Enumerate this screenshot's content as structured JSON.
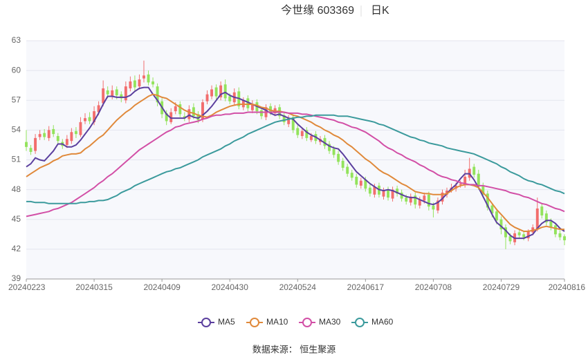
{
  "chart_data": {
    "type": "candlestick",
    "title": "今世缘 603369",
    "subtitle": "日K",
    "source": "数据来源： 恒生聚源",
    "categories": [
      "20240223",
      null,
      null,
      null,
      null,
      null,
      null,
      null,
      null,
      null,
      null,
      null,
      null,
      null,
      null,
      "20240315",
      null,
      null,
      null,
      null,
      null,
      null,
      null,
      null,
      null,
      null,
      null,
      null,
      null,
      null,
      "20240409",
      null,
      null,
      null,
      null,
      null,
      null,
      null,
      null,
      null,
      null,
      null,
      null,
      null,
      null,
      "20240430",
      null,
      null,
      null,
      null,
      null,
      null,
      null,
      null,
      null,
      null,
      null,
      null,
      null,
      null,
      "20240524",
      null,
      null,
      null,
      null,
      null,
      null,
      null,
      null,
      null,
      null,
      null,
      null,
      null,
      null,
      "20240617",
      null,
      null,
      null,
      null,
      null,
      null,
      null,
      null,
      null,
      null,
      null,
      null,
      null,
      null,
      "20240708",
      null,
      null,
      null,
      null,
      null,
      null,
      null,
      null,
      null,
      null,
      null,
      null,
      null,
      null,
      "20240729",
      null,
      null,
      null,
      null,
      null,
      null,
      null,
      null,
      null,
      null,
      null,
      null,
      null,
      "20240816"
    ],
    "open": [
      52.8,
      52.2,
      51.9,
      53.3,
      53.7,
      53.2,
      54.1,
      53.4,
      52.8,
      52.5,
      52.9,
      53.9,
      53.5,
      54.9,
      55.3,
      54.8,
      55.8,
      56.7,
      58.0,
      57.4,
      58.1,
      57.6,
      57.0,
      58.2,
      59.0,
      58.4,
      59.2,
      59.6,
      58.9,
      58.4,
      56.9,
      55.7,
      54.8,
      55.9,
      56.6,
      55.4,
      55.1,
      56.3,
      55.6,
      55.1,
      56.9,
      57.4,
      58.3,
      57.3,
      58.6,
      57.4,
      56.8,
      57.9,
      56.3,
      57.2,
      56.0,
      56.8,
      56.0,
      55.3,
      56.4,
      55.7,
      56.3,
      55.5,
      54.6,
      55.3,
      54.2,
      53.4,
      54.0,
      53.0,
      53.6,
      52.8,
      53.2,
      52.6,
      52.1,
      51.6,
      50.9,
      50.3,
      49.7,
      49.3,
      48.4,
      49.0,
      48.2,
      47.5,
      48.4,
      47.3,
      48.0,
      47.1,
      48.1,
      47.7,
      47.2,
      46.7,
      47.4,
      46.4,
      46.9,
      47.5,
      46.4,
      45.9,
      46.8,
      47.5,
      48.0,
      48.1,
      48.5,
      48.5,
      49.2,
      50.3,
      49.6,
      48.4,
      47.6,
      46.4,
      45.8,
      45.0,
      44.2,
      43.3,
      42.7,
      43.7,
      43.5,
      43.1,
      43.7,
      44.0,
      46.3,
      45.6,
      44.8,
      44.4,
      43.6,
      43.3
    ],
    "close": [
      52.3,
      51.8,
      53.2,
      53.6,
      53.3,
      54.0,
      53.6,
      52.9,
      52.4,
      53.1,
      53.8,
      53.6,
      54.8,
      55.2,
      54.9,
      55.9,
      56.5,
      58.2,
      57.6,
      58.0,
      57.5,
      57.2,
      58.4,
      58.9,
      58.3,
      59.1,
      59.5,
      58.8,
      58.6,
      56.8,
      55.6,
      54.9,
      55.8,
      56.4,
      55.6,
      55.2,
      56.1,
      55.4,
      55.0,
      56.8,
      57.6,
      58.1,
      57.4,
      58.5,
      57.2,
      56.9,
      57.8,
      56.4,
      57.0,
      56.2,
      56.6,
      55.9,
      55.4,
      56.3,
      55.8,
      56.2,
      55.4,
      54.8,
      55.2,
      54.0,
      53.5,
      53.9,
      53.2,
      53.4,
      52.9,
      53.1,
      52.4,
      51.9,
      51.5,
      50.8,
      50.2,
      49.6,
      49.2,
      48.5,
      48.9,
      48.1,
      47.6,
      48.3,
      47.5,
      47.9,
      47.2,
      48.0,
      47.6,
      47.1,
      46.8,
      47.3,
      46.5,
      47.0,
      47.4,
      46.3,
      46.0,
      46.9,
      47.7,
      47.9,
      48.2,
      48.4,
      48.6,
      49.3,
      50.1,
      49.5,
      48.3,
      47.5,
      46.2,
      45.6,
      44.9,
      44.0,
      43.2,
      42.8,
      43.6,
      43.4,
      43.2,
      43.8,
      44.2,
      46.1,
      45.4,
      44.7,
      44.2,
      43.5,
      43.2,
      42.9
    ],
    "low": [
      51.9,
      51.5,
      51.6,
      53.0,
      53.0,
      52.9,
      53.3,
      52.6,
      52.1,
      52.2,
      52.6,
      53.2,
      53.3,
      54.6,
      54.6,
      54.5,
      55.5,
      56.4,
      57.2,
      57.1,
      57.1,
      56.8,
      56.7,
      57.9,
      57.9,
      58.1,
      58.8,
      58.5,
      58.3,
      56.4,
      55.2,
      54.5,
      54.6,
      55.6,
      55.3,
      54.9,
      54.8,
      55.1,
      54.7,
      54.8,
      56.6,
      57.1,
      57.1,
      57.0,
      56.9,
      56.6,
      56.5,
      56.1,
      56.0,
      55.9,
      55.7,
      55.6,
      55.1,
      55.0,
      55.5,
      55.4,
      55.1,
      54.5,
      54.3,
      53.7,
      53.2,
      53.1,
      52.9,
      52.8,
      52.6,
      52.5,
      52.1,
      51.6,
      51.2,
      50.5,
      49.9,
      49.3,
      48.9,
      48.2,
      48.1,
      47.8,
      47.3,
      47.2,
      47.2,
      47.0,
      46.9,
      46.8,
      47.3,
      46.8,
      46.5,
      46.4,
      46.1,
      46.1,
      46.6,
      45.9,
      45.2,
      45.6,
      46.5,
      47.2,
      47.7,
      47.8,
      48.2,
      48.2,
      48.9,
      49.2,
      48.0,
      47.2,
      45.9,
      45.2,
      44.5,
      43.5,
      42.0,
      42.5,
      42.4,
      43.1,
      42.9,
      42.8,
      43.4,
      43.8,
      45.1,
      44.4,
      43.9,
      43.2,
      42.9,
      42.4
    ],
    "high": [
      54.0,
      52.5,
      53.6,
      54.0,
      54.1,
      54.4,
      54.5,
      53.7,
      53.1,
      53.5,
      54.2,
      54.3,
      55.3,
      55.7,
      55.8,
      56.4,
      56.9,
      59.0,
      58.4,
      58.5,
      58.4,
      57.9,
      58.9,
      59.4,
      59.5,
      59.6,
      61.0,
      60.0,
      59.3,
      58.7,
      57.2,
      56.0,
      56.2,
      56.8,
      56.9,
      55.8,
      56.5,
      56.7,
      55.9,
      57.1,
      58.0,
      58.5,
      58.6,
      58.9,
      59.1,
      57.7,
      58.2,
      58.3,
      57.3,
      57.5,
      57.0,
      57.1,
      56.3,
      56.6,
      56.7,
      56.5,
      56.6,
      55.8,
      55.5,
      55.6,
      54.5,
      54.2,
      54.3,
      53.7,
      53.9,
      53.4,
      53.5,
      52.9,
      52.4,
      51.9,
      51.2,
      50.6,
      50.0,
      49.6,
      49.2,
      49.3,
      48.5,
      48.6,
      48.7,
      48.2,
      48.3,
      48.3,
      48.4,
      48.0,
      47.5,
      47.6,
      47.7,
      47.3,
      47.7,
      47.8,
      46.7,
      47.2,
      48.0,
      48.2,
      48.6,
      48.7,
      48.9,
      50.0,
      51.2,
      50.6,
      50.0,
      48.7,
      47.9,
      46.6,
      46.1,
      45.3,
      44.5,
      43.6,
      43.9,
      44.0,
      43.8,
      44.0,
      44.5,
      47.2,
      46.6,
      45.9,
      45.1,
      44.6,
      43.9,
      43.5
    ],
    "up_color": "#f26d6d",
    "down_color": "#93e35c",
    "series": [
      {
        "name": "MA5",
        "color": "#5b3f9e",
        "values": [
          50.3,
          50.6,
          51.2,
          51.0,
          50.9,
          51.4,
          51.9,
          52.6,
          52.6,
          52.3,
          52.3,
          52.5,
          53.0,
          53.6,
          54.2,
          54.9,
          55.7,
          56.6,
          57.4,
          57.4,
          57.3,
          57.3,
          57.3,
          57.5,
          57.9,
          58.2,
          58.3,
          58.3,
          57.6,
          57.0,
          56.3,
          55.6,
          55.2,
          55.2,
          55.2,
          55.2,
          55.5,
          55.3,
          55.2,
          55.5,
          55.9,
          56.4,
          57.0,
          57.6,
          57.8,
          57.5,
          57.3,
          57.2,
          57.0,
          56.8,
          56.6,
          56.4,
          56.2,
          56.0,
          55.7,
          55.5,
          55.6,
          55.4,
          55.2,
          55.1,
          54.6,
          54.2,
          53.8,
          53.5,
          53.3,
          53.0,
          52.7,
          52.4,
          52.2,
          52.1,
          51.6,
          51.0,
          50.4,
          49.8,
          49.4,
          49.0,
          48.6,
          48.3,
          48.0,
          47.9,
          48.0,
          47.9,
          47.7,
          47.5,
          47.3,
          47.2,
          47.2,
          47.0,
          46.8,
          46.6,
          46.5,
          46.7,
          47.1,
          47.6,
          48.1,
          48.5,
          49.1,
          49.6,
          49.6,
          49.0,
          48.2,
          47.3,
          46.4,
          45.5,
          44.7,
          44.3,
          43.9,
          43.4,
          43.1,
          43.1,
          43.1,
          43.3,
          43.5,
          44.1,
          44.6,
          44.9,
          44.9,
          44.6,
          44.1,
          43.8
        ]
      },
      {
        "name": "MA10",
        "color": "#e0893a",
        "values": [
          49.3,
          49.6,
          49.9,
          50.2,
          50.4,
          50.6,
          50.9,
          51.1,
          51.4,
          51.5,
          51.6,
          51.6,
          51.7,
          52.1,
          52.4,
          52.8,
          53.2,
          53.5,
          54.0,
          54.5,
          55.0,
          55.4,
          55.8,
          56.1,
          56.5,
          56.8,
          57.1,
          57.4,
          57.6,
          57.5,
          57.3,
          57.2,
          56.9,
          56.6,
          56.3,
          56.0,
          55.8,
          55.7,
          55.5,
          55.4,
          55.3,
          55.5,
          55.8,
          56.0,
          56.2,
          56.4,
          56.5,
          56.6,
          56.6,
          56.6,
          56.6,
          56.5,
          56.3,
          56.2,
          56.0,
          55.9,
          55.9,
          55.8,
          55.7,
          55.5,
          55.4,
          55.2,
          55.0,
          54.8,
          54.5,
          54.3,
          54.0,
          53.8,
          53.5,
          53.3,
          53.0,
          52.6,
          52.3,
          51.9,
          51.5,
          51.1,
          50.8,
          50.4,
          50.0,
          49.7,
          49.5,
          49.2,
          48.9,
          48.6,
          48.4,
          48.1,
          47.8,
          47.7,
          47.6,
          47.6,
          47.5,
          47.5,
          47.5,
          47.6,
          47.9,
          48.2,
          48.4,
          48.5,
          48.5,
          48.4,
          48.2,
          47.7,
          47.2,
          46.6,
          46.0,
          45.5,
          45.0,
          44.5,
          44.2,
          44.0,
          43.8,
          43.8,
          43.9,
          44.0,
          44.2,
          44.3,
          44.2,
          44.1,
          44.0,
          44.0
        ]
      },
      {
        "name": "MA30",
        "color": "#d24fa6",
        "values": [
          45.3,
          45.4,
          45.5,
          45.6,
          45.7,
          45.8,
          46.0,
          46.1,
          46.3,
          46.5,
          46.7,
          47.0,
          47.3,
          47.6,
          47.9,
          48.2,
          48.6,
          48.9,
          49.3,
          49.6,
          50.0,
          50.4,
          50.8,
          51.2,
          51.6,
          52.0,
          52.3,
          52.6,
          52.9,
          53.2,
          53.5,
          53.8,
          54.0,
          54.3,
          54.4,
          54.6,
          54.7,
          54.8,
          54.9,
          55.1,
          55.2,
          55.4,
          55.5,
          55.5,
          55.6,
          55.6,
          55.7,
          55.7,
          55.7,
          55.8,
          55.8,
          55.8,
          55.8,
          55.8,
          55.8,
          55.8,
          55.8,
          55.8,
          55.7,
          55.7,
          55.7,
          55.6,
          55.6,
          55.5,
          55.4,
          55.3,
          55.2,
          55.1,
          55.0,
          54.8,
          54.7,
          54.5,
          54.3,
          54.2,
          54.0,
          53.8,
          53.5,
          53.2,
          52.9,
          52.5,
          52.2,
          52.0,
          51.7,
          51.5,
          51.2,
          51.0,
          50.8,
          50.5,
          50.3,
          50.0,
          49.8,
          49.5,
          49.3,
          49.2,
          49.0,
          48.9,
          48.7,
          48.6,
          48.5,
          48.5,
          48.4,
          48.4,
          48.3,
          48.2,
          48.1,
          48.0,
          47.9,
          47.7,
          47.6,
          47.5,
          47.3,
          47.2,
          47.0,
          46.8,
          46.6,
          46.5,
          46.3,
          46.1,
          46.0,
          45.8
        ]
      },
      {
        "name": "MA60",
        "color": "#3b9a9c",
        "values": [
          46.8,
          46.8,
          46.7,
          46.7,
          46.7,
          46.6,
          46.6,
          46.6,
          46.6,
          46.6,
          46.6,
          46.6,
          46.7,
          46.7,
          46.8,
          46.8,
          46.9,
          46.9,
          47.0,
          47.2,
          47.4,
          47.7,
          47.9,
          48.1,
          48.4,
          48.6,
          48.8,
          49.0,
          49.2,
          49.4,
          49.6,
          49.8,
          49.9,
          50.1,
          50.2,
          50.4,
          50.6,
          50.8,
          51.0,
          51.3,
          51.5,
          51.7,
          51.9,
          52.1,
          52.4,
          52.6,
          52.9,
          53.1,
          53.3,
          53.6,
          53.8,
          54.0,
          54.2,
          54.4,
          54.6,
          54.8,
          54.9,
          55.0,
          55.1,
          55.2,
          55.3,
          55.3,
          55.4,
          55.4,
          55.5,
          55.5,
          55.5,
          55.5,
          55.5,
          55.4,
          55.4,
          55.4,
          55.3,
          55.2,
          55.1,
          55.0,
          54.9,
          54.8,
          54.6,
          54.5,
          54.3,
          54.1,
          53.9,
          53.7,
          53.5,
          53.3,
          53.2,
          53.0,
          52.9,
          52.7,
          52.6,
          52.5,
          52.4,
          52.2,
          52.1,
          52.0,
          51.9,
          51.8,
          51.7,
          51.6,
          51.4,
          51.2,
          51.0,
          50.8,
          50.6,
          50.3,
          50.1,
          49.8,
          49.6,
          49.4,
          49.1,
          48.9,
          48.8,
          48.6,
          48.5,
          48.3,
          48.1,
          47.9,
          47.8,
          47.6
        ]
      }
    ],
    "ylim": [
      39,
      63
    ],
    "yticks": [
      39,
      42,
      45,
      48,
      51,
      54,
      57,
      60,
      63
    ],
    "grid": true
  }
}
